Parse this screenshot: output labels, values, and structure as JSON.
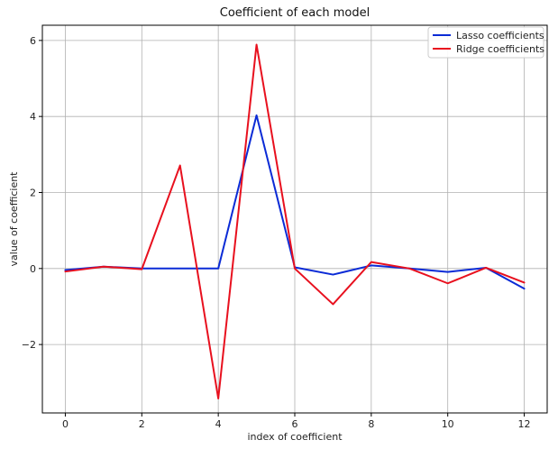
{
  "chart_data": {
    "type": "line",
    "title": "Coefficient of each model",
    "xlabel": "index of coefficient",
    "ylabel": "value of coefficient",
    "x": [
      0,
      1,
      2,
      3,
      4,
      5,
      6,
      7,
      8,
      9,
      10,
      11,
      12
    ],
    "xlim": [
      -0.6,
      12.6
    ],
    "ylim": [
      -3.8,
      6.4
    ],
    "xticks": [
      0,
      2,
      4,
      6,
      8,
      10,
      12
    ],
    "yticks": [
      -2,
      0,
      2,
      4,
      6
    ],
    "ytick_labels": [
      "−2",
      "0",
      "2",
      "4",
      "6"
    ],
    "grid": true,
    "legend_position": "top-right",
    "series": [
      {
        "name": "Lasso coefficients",
        "color": "#0b2bd6",
        "values": [
          -0.04,
          0.05,
          0.0,
          0.0,
          0.0,
          4.03,
          0.03,
          -0.16,
          0.08,
          0.0,
          -0.09,
          0.02,
          -0.53
        ]
      },
      {
        "name": "Ridge coefficients",
        "color": "#e8101e",
        "values": [
          -0.08,
          0.05,
          -0.02,
          2.71,
          -3.42,
          5.89,
          0.0,
          -0.94,
          0.17,
          0.0,
          -0.39,
          0.02,
          -0.37
        ]
      }
    ]
  }
}
